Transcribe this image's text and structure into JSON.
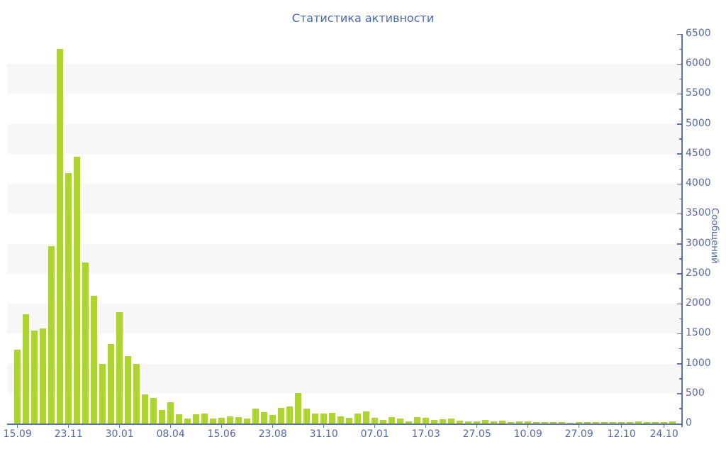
{
  "title": "Статистика активности",
  "colors": {
    "background": "#ffffff",
    "bar": "#aed334",
    "band": "#f7f7f7",
    "title_text": "#4668ac",
    "axis_text": "#56689f",
    "axis_line": "#5b74ae"
  },
  "chart_data": {
    "type": "bar",
    "title": "Статистика активности",
    "xlabel": "",
    "ylabel": "Сообщений",
    "ylim": [
      0,
      6500
    ],
    "y_tick_interval": 500,
    "y_minor_tick_interval": 250,
    "y_tick_labels": [
      "0",
      "500",
      "1000",
      "1500",
      "2000",
      "2500",
      "3000",
      "3500",
      "4000",
      "4500",
      "5000",
      "5500",
      "6000",
      "6500"
    ],
    "grid": "alternating horizontal gray bands between 500-unit gridlines",
    "legend": "none",
    "x_tick_labels": [
      "15.09",
      "23.11",
      "30.01",
      "08.04",
      "15.06",
      "23.08",
      "31.10",
      "07.01",
      "17.03",
      "27.05",
      "10.09",
      "27.09",
      "12.10",
      "24.10"
    ],
    "x_ticks": [
      {
        "label": "15.09",
        "bar": 0
      },
      {
        "label": "23.11",
        "bar": 6
      },
      {
        "label": "30.01",
        "bar": 12
      },
      {
        "label": "08.04",
        "bar": 18
      },
      {
        "label": "15.06",
        "bar": 24
      },
      {
        "label": "23.08",
        "bar": 30
      },
      {
        "label": "31.10",
        "bar": 36
      },
      {
        "label": "07.01",
        "bar": 42
      },
      {
        "label": "17.03",
        "bar": 48
      },
      {
        "label": "27.05",
        "bar": 54
      },
      {
        "label": "10.09",
        "bar": 60
      },
      {
        "label": "27.09",
        "bar": 66
      },
      {
        "label": "12.10",
        "bar": 71
      },
      {
        "label": "24.10",
        "bar": 76
      }
    ],
    "values": [
      1230,
      1820,
      1550,
      1590,
      2960,
      6250,
      4180,
      4450,
      2690,
      2130,
      1000,
      1330,
      1860,
      1130,
      990,
      490,
      430,
      230,
      355,
      155,
      80,
      150,
      165,
      85,
      90,
      120,
      105,
      80,
      250,
      185,
      140,
      255,
      280,
      510,
      245,
      160,
      170,
      180,
      120,
      100,
      160,
      200,
      90,
      55,
      105,
      85,
      35,
      110,
      95,
      65,
      70,
      80,
      45,
      40,
      30,
      55,
      30,
      45,
      25,
      40,
      30,
      25,
      25,
      20,
      25,
      15,
      20,
      20,
      25,
      20,
      25,
      20,
      25,
      40,
      28,
      25,
      25,
      30
    ]
  }
}
